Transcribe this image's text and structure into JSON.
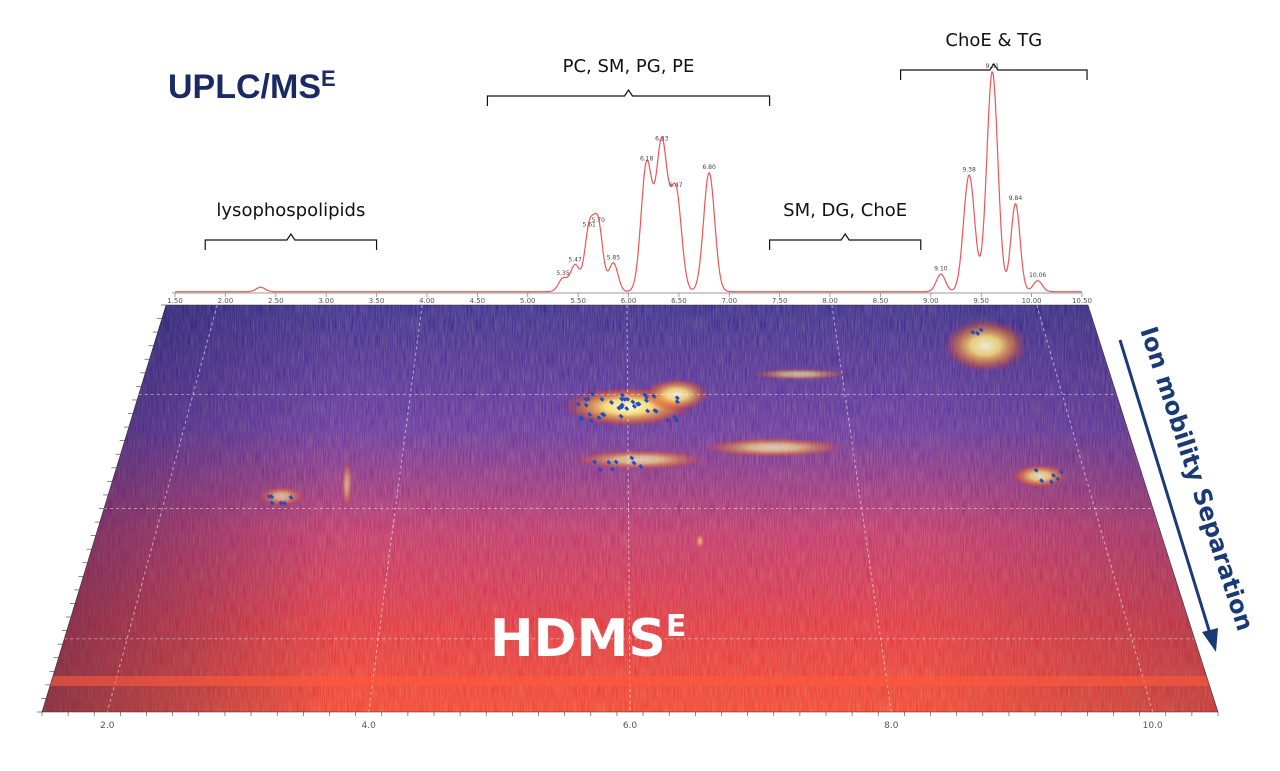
{
  "titles": {
    "top": "UPLC/MS",
    "top_sup": "E",
    "bottom": "HDMS",
    "bottom_sup": "E",
    "side": "Ion mobility Separation"
  },
  "colors": {
    "chromatogram": "#ee5555",
    "title_blue": "#1b2a63",
    "map_low": "#2b2090",
    "map_mid": "#d8203c",
    "map_high": "#fff4a0",
    "feature_dot": "#1f4fc0"
  },
  "chart_data": [
    {
      "type": "line",
      "title": "UPLC/MSE",
      "xlim": [
        1.5,
        10.5
      ],
      "ylim": [
        0,
        100
      ],
      "x_ticks": [
        "1.50",
        "2.00",
        "2.50",
        "3.00",
        "3.50",
        "4.00",
        "4.50",
        "5.00",
        "5.50",
        "6.00",
        "6.50",
        "7.00",
        "7.50",
        "8.00",
        "8.50",
        "9.00",
        "9.50",
        "10.00",
        "10.50"
      ],
      "peaks": [
        {
          "label": "5.35",
          "x": 5.35,
          "y": 6
        },
        {
          "label": "5.47",
          "x": 5.47,
          "y": 12
        },
        {
          "label": "5.61",
          "x": 5.61,
          "y": 28
        },
        {
          "label": "5.70",
          "x": 5.7,
          "y": 30
        },
        {
          "label": "5.85",
          "x": 5.85,
          "y": 13
        },
        {
          "label": "6.18",
          "x": 6.18,
          "y": 58
        },
        {
          "label": "6.33",
          "x": 6.33,
          "y": 67
        },
        {
          "label": "6.47",
          "x": 6.47,
          "y": 46
        },
        {
          "label": "6.80",
          "x": 6.8,
          "y": 54
        },
        {
          "label": "9.10",
          "x": 9.1,
          "y": 8
        },
        {
          "label": "9.38",
          "x": 9.38,
          "y": 53
        },
        {
          "label": "9.61",
          "x": 9.61,
          "y": 100
        },
        {
          "label": "9.84",
          "x": 9.84,
          "y": 40
        },
        {
          "label": "10.06",
          "x": 10.06,
          "y": 5
        }
      ],
      "minor_peaks": [
        {
          "x": 2.35,
          "y": 2
        }
      ],
      "annotations": [
        {
          "text": "lysophospolipids",
          "x_from": 1.8,
          "x_to": 3.5
        },
        {
          "text": "PC, SM, PG, PE",
          "x_from": 4.6,
          "x_to": 7.4
        },
        {
          "text": "SM, DG, ChoE",
          "x_from": 7.4,
          "x_to": 8.9
        },
        {
          "text": "ChoE & TG",
          "x_from": 8.7,
          "x_to": 10.55
        }
      ]
    },
    {
      "type": "heatmap",
      "title": "HDMSE",
      "xlim": [
        1.5,
        10.5
      ],
      "x_ticks": [
        "2.0",
        "4.0",
        "6.0",
        "8.0",
        "10.0"
      ],
      "y_axis_label": "Ion mobility Separation",
      "hotspots": [
        {
          "x": 6.0,
          "y": 0.25,
          "intensity": 1.0,
          "w": 1.2,
          "h": 0.1
        },
        {
          "x": 6.45,
          "y": 0.22,
          "intensity": 0.9,
          "w": 0.6,
          "h": 0.08
        },
        {
          "x": 6.1,
          "y": 0.38,
          "intensity": 0.7,
          "w": 1.2,
          "h": 0.05
        },
        {
          "x": 7.3,
          "y": 0.35,
          "intensity": 0.7,
          "w": 1.3,
          "h": 0.05
        },
        {
          "x": 7.6,
          "y": 0.17,
          "intensity": 0.6,
          "w": 0.9,
          "h": 0.03
        },
        {
          "x": 9.4,
          "y": 0.1,
          "intensity": 0.9,
          "w": 0.8,
          "h": 0.13
        },
        {
          "x": 9.6,
          "y": 0.42,
          "intensity": 0.8,
          "w": 0.5,
          "h": 0.06
        },
        {
          "x": 3.0,
          "y": 0.47,
          "intensity": 0.6,
          "w": 0.4,
          "h": 0.05
        },
        {
          "x": 3.55,
          "y": 0.44,
          "intensity": 0.5,
          "w": 0.1,
          "h": 0.12
        },
        {
          "x": 6.6,
          "y": 0.58,
          "intensity": 0.5,
          "w": 0.08,
          "h": 0.04
        }
      ]
    }
  ]
}
